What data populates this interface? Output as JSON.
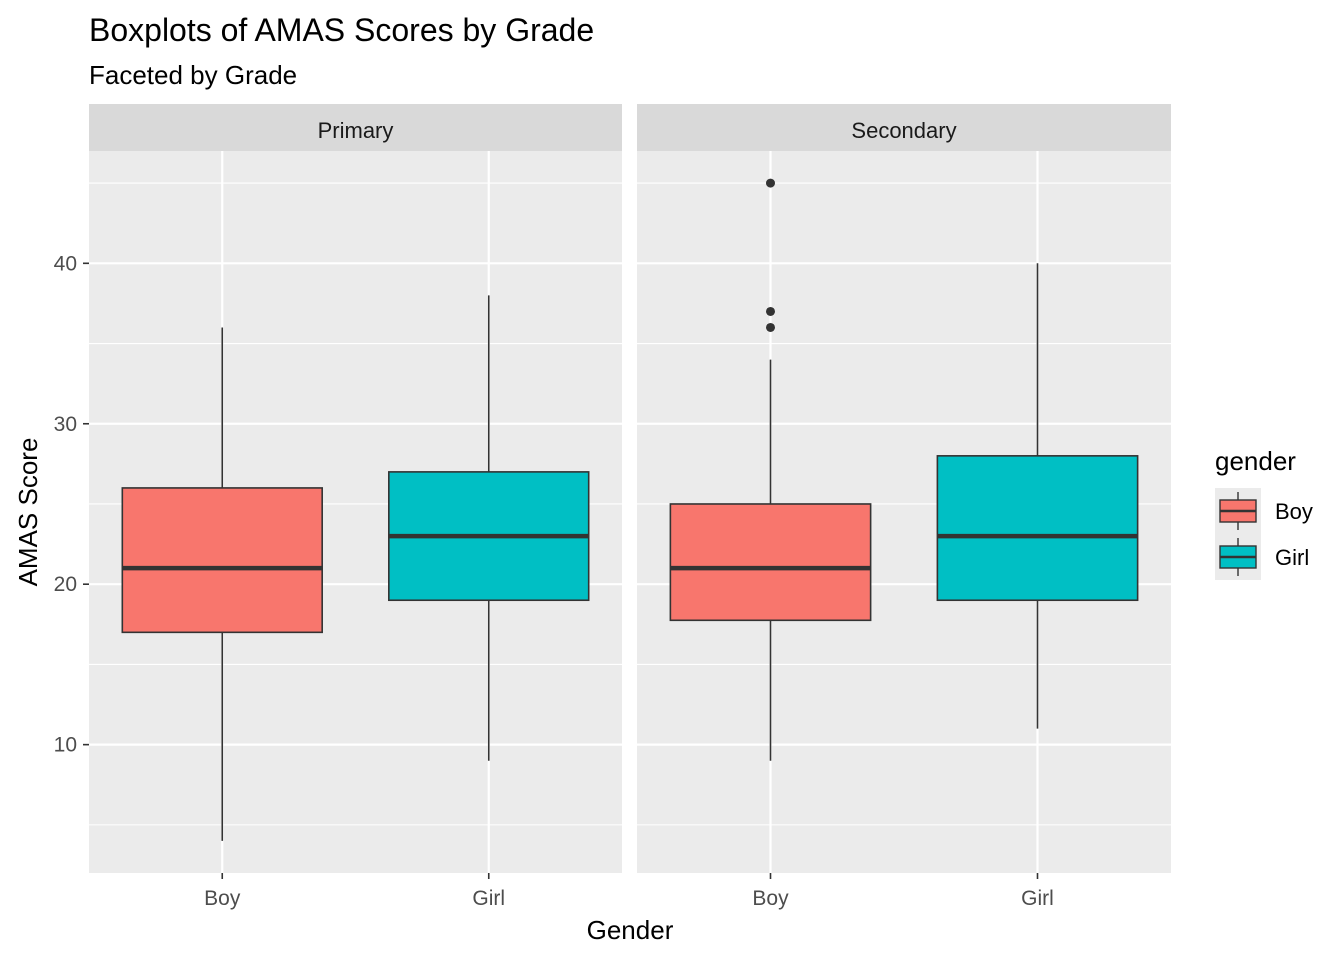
{
  "chart_data": {
    "type": "boxplot",
    "title": "Boxplots of AMAS Scores by Grade",
    "subtitle": "Faceted by Grade",
    "xlabel": "Gender",
    "ylabel": "AMAS Score",
    "categories": [
      "Boy",
      "Girl"
    ],
    "facets": [
      "Primary",
      "Secondary"
    ],
    "ylim": [
      2,
      47
    ],
    "yticks": [
      10,
      20,
      30,
      40
    ],
    "grid": true,
    "legend": {
      "title": "gender",
      "position": "right",
      "entries": [
        "Boy",
        "Girl"
      ]
    },
    "colors": {
      "Boy": "#F8766D",
      "Girl": "#00BFC4"
    },
    "panels": [
      {
        "facet": "Primary",
        "boxes": [
          {
            "category": "Boy",
            "min": 4,
            "q1": 17,
            "median": 21,
            "q3": 26,
            "max": 36,
            "outliers": []
          },
          {
            "category": "Girl",
            "min": 9,
            "q1": 19,
            "median": 23,
            "q3": 27,
            "max": 38,
            "outliers": []
          }
        ]
      },
      {
        "facet": "Secondary",
        "boxes": [
          {
            "category": "Boy",
            "min": 9,
            "q1": 17.75,
            "median": 21,
            "q3": 25,
            "max": 34,
            "outliers": [
              45,
              37,
              36
            ]
          },
          {
            "category": "Girl",
            "min": 11,
            "q1": 19,
            "median": 23,
            "q3": 28,
            "max": 40,
            "outliers": []
          }
        ]
      }
    ]
  }
}
